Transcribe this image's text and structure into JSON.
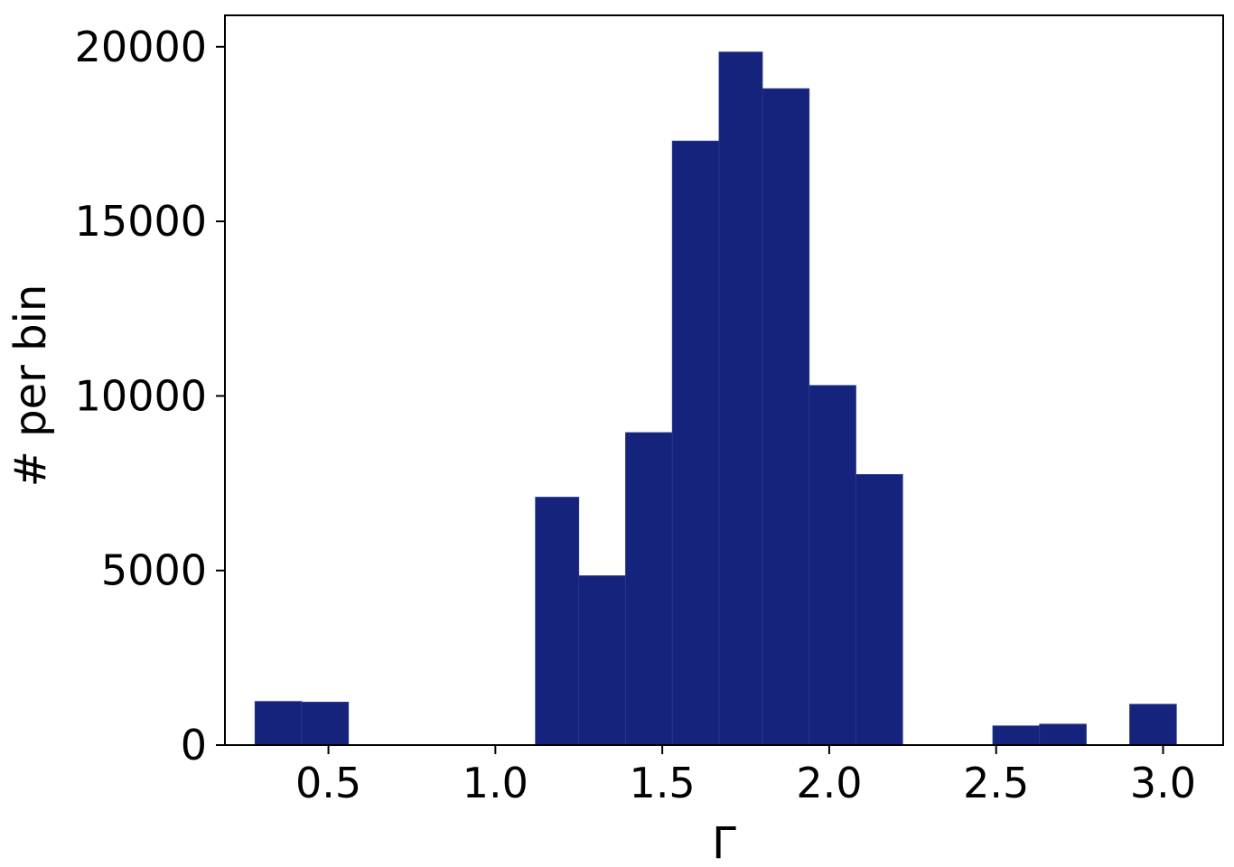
{
  "chart_data": {
    "type": "bar",
    "title": "",
    "xlabel": "Γ",
    "ylabel": "# per bin",
    "xlim": [
      0.19,
      3.18
    ],
    "ylim": [
      0,
      20900
    ],
    "x_ticks": [
      0.5,
      1.0,
      1.5,
      2.0,
      2.5,
      3.0
    ],
    "x_tick_labels": [
      "0.5",
      "1.0",
      "1.5",
      "2.0",
      "2.5",
      "3.0"
    ],
    "y_ticks": [
      0,
      5000,
      10000,
      15000,
      20000
    ],
    "y_tick_labels": [
      "0",
      "5000",
      "10000",
      "15000",
      "20000"
    ],
    "grid": false,
    "bar_color": "#15237d",
    "bins": [
      {
        "x0": 0.28,
        "x1": 0.42,
        "value": 1250
      },
      {
        "x0": 0.42,
        "x1": 0.56,
        "value": 1230
      },
      {
        "x0": 1.12,
        "x1": 1.25,
        "value": 7100
      },
      {
        "x0": 1.25,
        "x1": 1.39,
        "value": 4850
      },
      {
        "x0": 1.39,
        "x1": 1.53,
        "value": 8950
      },
      {
        "x0": 1.53,
        "x1": 1.67,
        "value": 17300
      },
      {
        "x0": 1.67,
        "x1": 1.8,
        "value": 19850
      },
      {
        "x0": 1.8,
        "x1": 1.94,
        "value": 18800
      },
      {
        "x0": 1.94,
        "x1": 2.08,
        "value": 10300
      },
      {
        "x0": 2.08,
        "x1": 2.22,
        "value": 7750
      },
      {
        "x0": 2.49,
        "x1": 2.63,
        "value": 550
      },
      {
        "x0": 2.63,
        "x1": 2.77,
        "value": 600
      },
      {
        "x0": 2.9,
        "x1": 3.04,
        "value": 1170
      }
    ]
  }
}
